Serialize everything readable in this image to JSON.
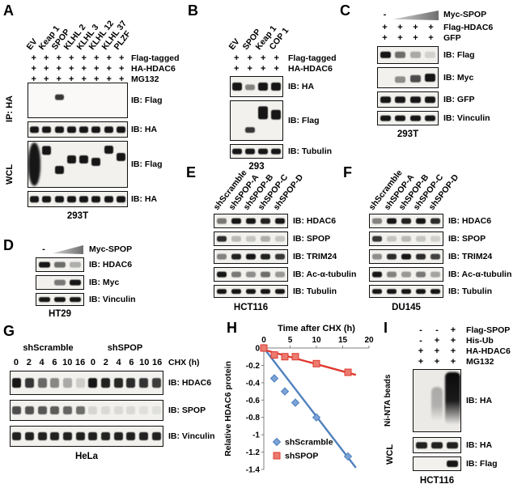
{
  "panels": {
    "A": {
      "label": "A",
      "lanes": [
        "EV",
        "Keap 1",
        "SPOP",
        "KLHL 2",
        "KLHL 3",
        "KLHL 12",
        "KLHL 37",
        "PLZF"
      ],
      "rows": [
        {
          "label": "Flag-tagged",
          "values": [
            "+",
            "+",
            "+",
            "+",
            "+",
            "+",
            "+",
            "+"
          ]
        },
        {
          "label": "HA-HDAC6",
          "values": [
            "+",
            "+",
            "+",
            "+",
            "+",
            "+",
            "+",
            "+"
          ]
        },
        {
          "label": "MG132",
          "values": [
            "+",
            "+",
            "+",
            "+",
            "+",
            "+",
            "+",
            "+"
          ]
        }
      ],
      "side_labels": [
        "IP: HA",
        "WCL"
      ],
      "blots": [
        {
          "ib": "IB: Flag",
          "pattern": [
            0,
            0,
            {
              "i": 0.85,
              "y": 0.4,
              "h": 0.16
            },
            0,
            0,
            0,
            0,
            0
          ]
        },
        {
          "ib": "IB: HA",
          "pattern": [
            1,
            1,
            1,
            1,
            1,
            1,
            1,
            1
          ]
        },
        {
          "ib": "IB: Flag",
          "pattern": [
            {
              "blob": true,
              "y": 0.5,
              "h": 0.95,
              "w": 1
            },
            {
              "y": 0.2,
              "h": 0.2
            },
            {
              "y": 0.62,
              "h": 0.18
            },
            {
              "y": 0.4,
              "h": 0.18
            },
            {
              "y": 0.4,
              "h": 0.18
            },
            {
              "y": 0.44,
              "h": 0.18
            },
            {
              "y": 0.18,
              "h": 0.18
            },
            {
              "y": 0.34,
              "h": 0.18
            }
          ]
        },
        {
          "ib": "IB: HA",
          "pattern": [
            1,
            1,
            1,
            1,
            1,
            1,
            1,
            1
          ]
        }
      ],
      "cell_line": "293T"
    },
    "B": {
      "label": "B",
      "lanes": [
        "EV",
        "SPOP",
        "Keap 1",
        "COP 1"
      ],
      "rows": [
        {
          "label": "Flag-tagged",
          "values": [
            "+",
            "+",
            "+",
            "+"
          ]
        },
        {
          "label": "HA-HDAC6",
          "values": [
            "+",
            "+",
            "+",
            "+"
          ]
        }
      ],
      "blots": [
        {
          "ib": "IB: HA",
          "pattern": [
            1,
            {
              "i": 0.5,
              "y": 0.55,
              "h": 0.3
            },
            1,
            1
          ]
        },
        {
          "ib": "IB: Flag",
          "pattern": [
            0,
            {
              "i": 0.85,
              "y": 0.74,
              "h": 0.16
            },
            {
              "y": 0.3,
              "h": 0.32
            },
            {
              "y": 0.35,
              "h": 0.26
            }
          ]
        },
        {
          "ib": "IB: Tubulin",
          "pattern": [
            1,
            1,
            1,
            1
          ]
        }
      ],
      "cell_line": "293"
    },
    "C": {
      "label": "C",
      "wedge_label": "Myc-SPOP",
      "wedge_values": [
        "-",
        "",
        "",
        ""
      ],
      "rows": [
        {
          "label": "Flag-HDAC6",
          "values": [
            "+",
            "+",
            "+",
            "+"
          ]
        },
        {
          "label": "GFP",
          "values": [
            "+",
            "+",
            "+",
            "+"
          ]
        }
      ],
      "blots": [
        {
          "ib": "IB: Flag",
          "pattern": [
            1,
            {
              "i": 0.6
            },
            {
              "i": 0.32
            },
            {
              "i": 0.14
            }
          ]
        },
        {
          "ib": "IB: Myc",
          "pattern": [
            0,
            {
              "i": 0.45,
              "y": 0.6,
              "h": 0.3
            },
            {
              "i": 0.75,
              "y": 0.55,
              "h": 0.36
            },
            1
          ]
        },
        {
          "ib": "IB: GFP",
          "pattern": [
            1,
            1,
            1,
            1
          ]
        },
        {
          "ib": "IB: Vinculin",
          "pattern": [
            1,
            1,
            1,
            1
          ]
        }
      ],
      "cell_line": "293T"
    },
    "D": {
      "label": "D",
      "wedge_label": "Myc-SPOP",
      "wedge_values": [
        "-",
        "",
        ""
      ],
      "blots": [
        {
          "ib": "IB: HDAC6",
          "pattern": [
            1,
            {
              "i": 0.6
            },
            {
              "i": 0.3
            }
          ]
        },
        {
          "ib": "IB: Myc",
          "pattern": [
            0,
            {
              "i": 0.55
            },
            1
          ]
        },
        {
          "ib": "IB: Vinculin",
          "pattern": [
            1,
            1,
            1
          ]
        }
      ],
      "cell_line": "HT29"
    },
    "E": {
      "label": "E",
      "lanes": [
        "shScramble",
        "shSPOP-A",
        "shSPOP-B",
        "shSPOP-C",
        "shSPOP-D"
      ],
      "blots": [
        {
          "ib": "IB: HDAC6",
          "pattern": [
            {
              "i": 0.55
            },
            1,
            1,
            {
              "i": 0.95
            },
            1
          ]
        },
        {
          "ib": "IB: SPOP",
          "pattern": [
            {
              "i": 0.9
            },
            {
              "i": 0.25
            },
            {
              "i": 0.2
            },
            {
              "i": 0.3
            },
            {
              "i": 0.2
            }
          ]
        },
        {
          "ib": "IB: TRIM24",
          "pattern": [
            {
              "i": 0.5
            },
            {
              "i": 0.95
            },
            1,
            {
              "i": 0.95
            },
            {
              "i": 0.85
            }
          ]
        },
        {
          "ib": "IB: Ac-α-tubulin",
          "pattern": [
            1,
            {
              "i": 0.55
            },
            {
              "i": 0.45
            },
            {
              "i": 0.6
            },
            {
              "i": 0.4
            }
          ]
        },
        {
          "ib": "IB: Tubulin",
          "pattern": [
            1,
            1,
            1,
            1,
            1
          ]
        }
      ],
      "cell_line": "HCT116"
    },
    "F": {
      "label": "F",
      "lanes": [
        "shScramble",
        "shSPOP-A",
        "shSPOP-B",
        "shSPOP-C",
        "shSPOP-D"
      ],
      "blots": [
        {
          "ib": "IB: HDAC6",
          "pattern": [
            {
              "i": 0.5
            },
            1,
            {
              "i": 0.95
            },
            1,
            {
              "i": 0.9
            }
          ]
        },
        {
          "ib": "IB: SPOP",
          "pattern": [
            {
              "i": 0.85
            },
            {
              "i": 0.2
            },
            {
              "i": 0.25
            },
            {
              "i": 0.2
            },
            {
              "i": 0.15
            }
          ]
        },
        {
          "ib": "IB: TRIM24",
          "pattern": [
            {
              "i": 0.45
            },
            {
              "i": 0.9
            },
            1,
            {
              "i": 0.9
            },
            {
              "i": 0.8
            }
          ]
        },
        {
          "ib": "IB: Ac-α-tubulin",
          "pattern": [
            1,
            {
              "i": 0.5
            },
            {
              "i": 0.4
            },
            {
              "i": 0.55
            },
            {
              "i": 0.35
            }
          ]
        },
        {
          "ib": "IB: Tubulin",
          "pattern": [
            1,
            1,
            1,
            1,
            1
          ]
        }
      ],
      "cell_line": "DU145"
    },
    "G": {
      "label": "G",
      "groups": [
        "shScramble",
        "shSPOP"
      ],
      "chx_label": "CHX (h)",
      "timepoints": [
        "0",
        "2",
        "4",
        "6",
        "10",
        "16",
        "0",
        "2",
        "4",
        "6",
        "10",
        "16"
      ],
      "blots": [
        {
          "ib": "IB: HDAC6",
          "pattern": [
            1,
            0.85,
            0.62,
            0.48,
            0.32,
            0.16,
            1,
            0.95,
            0.92,
            0.9,
            0.86,
            0.82
          ]
        },
        {
          "ib": "IB: SPOP",
          "pattern": [
            0.75,
            0.72,
            0.7,
            0.68,
            0.64,
            0.6,
            0.12,
            0.1,
            0.1,
            0.1,
            0.08,
            0.08
          ]
        },
        {
          "ib": "IB: Vinculin",
          "pattern": [
            0.95,
            0.95,
            0.95,
            0.95,
            0.95,
            0.95,
            0.95,
            0.95,
            0.95,
            0.95,
            0.95,
            0.95
          ]
        }
      ],
      "cell_line": "HeLa"
    },
    "H": {
      "label": "H"
    },
    "I": {
      "label": "I",
      "rows": [
        {
          "label": "Flag-SPOP",
          "values": [
            "-",
            "-",
            "+"
          ]
        },
        {
          "label": "His-Ub",
          "values": [
            "-",
            "+",
            "+"
          ]
        },
        {
          "label": "HA-HDAC6",
          "values": [
            "+",
            "+",
            "+"
          ]
        },
        {
          "label": "MG132",
          "values": [
            "+",
            "+",
            "+"
          ]
        }
      ],
      "side_labels": [
        "Ni-NTA beads",
        "WCL"
      ],
      "blots": [
        {
          "ib": "IB: HA",
          "pattern": [
            0,
            {
              "smear": true,
              "y": 0.55,
              "h": 0.55,
              "i": 0.28,
              "w": 0.75
            },
            {
              "smear": true,
              "y": 0.46,
              "h": 0.85,
              "i": 1,
              "w": 0.95
            }
          ]
        },
        {
          "ib": "IB: HA",
          "pattern": [
            {
              "i": 0.95
            },
            {
              "i": 0.95
            },
            {
              "i": 0.95
            }
          ]
        },
        {
          "ib": "IB: Flag",
          "pattern": [
            0,
            0,
            {
              "h": 0.5
            }
          ]
        }
      ],
      "cell_line": "HCT116"
    }
  },
  "chart_data": {
    "type": "scatter",
    "title": "Time after CHX (h)",
    "xlabel": "Time after CHX (h)",
    "ylabel": "Relative HDAC6 protein",
    "xlim": [
      0,
      20
    ],
    "ylim": [
      -1.4,
      0
    ],
    "x_ticks": [
      0,
      5,
      10,
      15,
      20
    ],
    "y_ticks": [
      0,
      -0.2,
      -0.4,
      -0.6,
      -0.8,
      -1,
      -1.2,
      -1.4
    ],
    "grid": false,
    "legend_position": "lower-left",
    "series": [
      {
        "name": "shScramble",
        "marker": "diamond",
        "color": "#4f81bd",
        "fill": "#7ba2d6",
        "x": [
          0,
          2,
          4,
          6,
          10,
          16
        ],
        "y": [
          0,
          -0.35,
          -0.5,
          -0.63,
          -0.8,
          -1.25
        ],
        "trend": {
          "x": [
            0,
            17.5
          ],
          "y": [
            0,
            -1.38
          ]
        }
      },
      {
        "name": "shSPOP",
        "marker": "square",
        "color": "#e0392e",
        "fill": "#ea7b70",
        "x": [
          0,
          2,
          4,
          6,
          10,
          16
        ],
        "y": [
          0,
          -0.08,
          -0.1,
          -0.1,
          -0.18,
          -0.28
        ],
        "trend": {
          "x": [
            0,
            17.5
          ],
          "y": [
            -0.02,
            -0.31
          ]
        }
      }
    ]
  }
}
